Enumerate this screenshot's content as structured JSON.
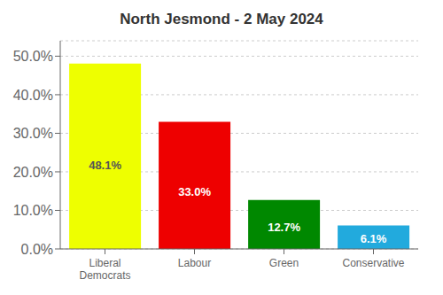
{
  "chart_data": {
    "type": "bar",
    "title": "North Jesmond - 2 May 2024",
    "categories": [
      "Liberal\nDemocrats",
      "Labour",
      "Green",
      "Conservative"
    ],
    "values": [
      48.1,
      33.0,
      12.7,
      6.1
    ],
    "value_labels": [
      "48.1%",
      "33.0%",
      "12.7%",
      "6.1%"
    ],
    "colors": [
      "#EEFF00",
      "#EE0000",
      "#008800",
      "#22AADD"
    ],
    "data_labels": true,
    "ylim": [
      0,
      54
    ],
    "yticks": [
      {
        "value": 0,
        "label": "0.0%"
      },
      {
        "value": 10,
        "label": "10.0%"
      },
      {
        "value": 20,
        "label": "20.0%"
      },
      {
        "value": 30,
        "label": "30.0%"
      },
      {
        "value": 40,
        "label": "40.0%"
      },
      {
        "value": 50,
        "label": "50.0%"
      }
    ],
    "grid": true
  }
}
